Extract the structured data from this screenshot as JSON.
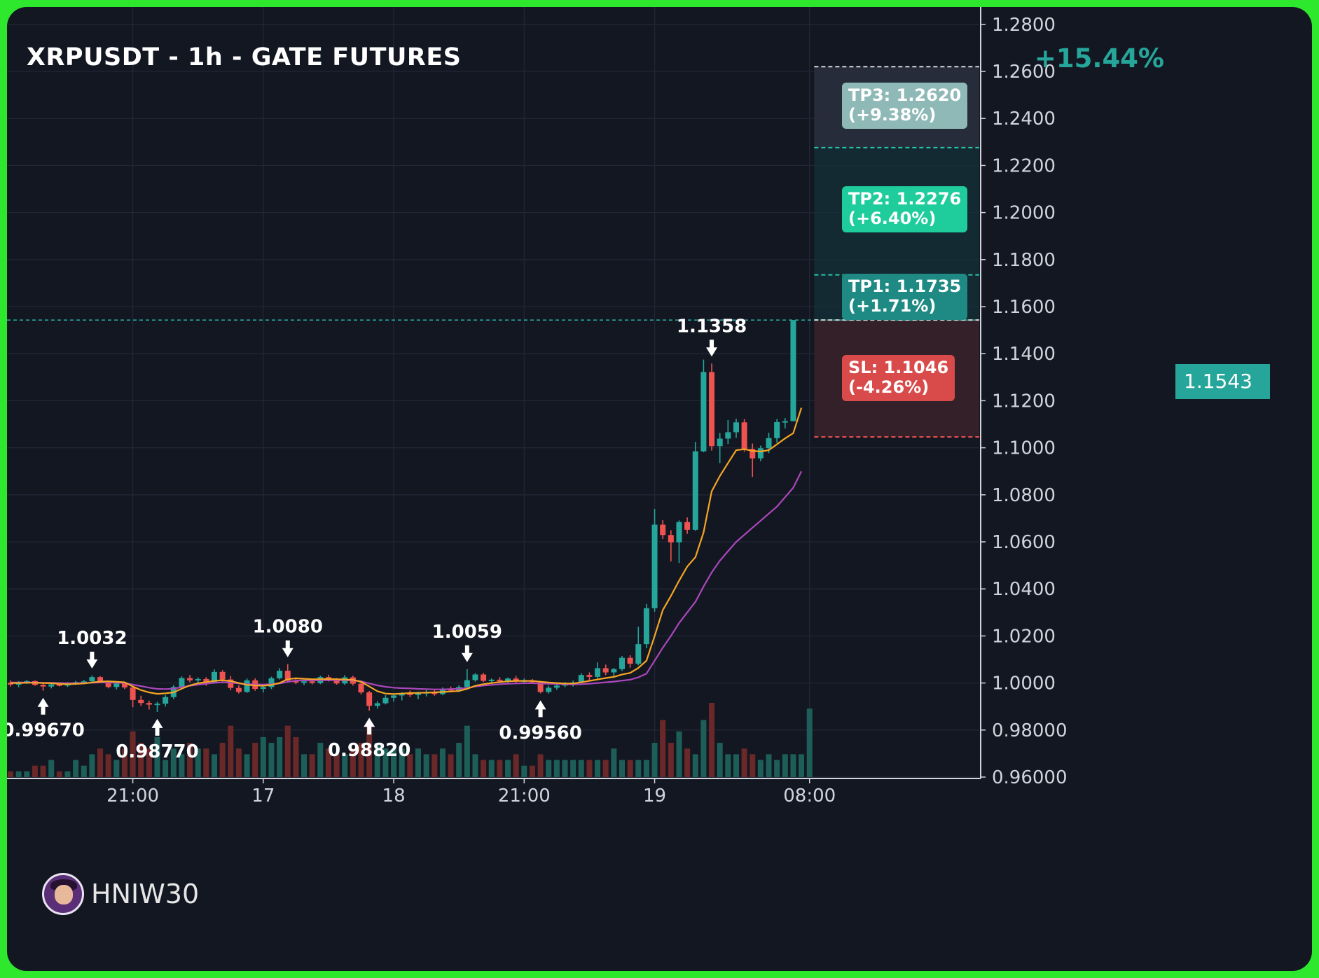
{
  "header": {
    "title": "XRPUSDT - 1h - GATE FUTURES",
    "target_change": "+15.44%"
  },
  "targets": {
    "tp3": "TP3: 1.2620\n(+9.38%)",
    "tp2": "TP2: 1.2276\n(+6.40%)",
    "tp1": "TP1: 1.1735\n(+1.71%)",
    "sl": "SL: 1.1046\n(-4.26%)",
    "current_price": "1.1543"
  },
  "author": {
    "name": "HNIW30"
  },
  "colors": {
    "background": "#131722",
    "frame": "#2ee82e",
    "up": "#26a69a",
    "down": "#ef5350",
    "ma_fast": "#f5a623",
    "ma_slow": "#ab47bc",
    "tp3_badge": "#8fb9b6",
    "tp2_badge": "#1fcc9c",
    "tp1_badge": "#1f8a83",
    "sl_badge": "#d94b4b"
  },
  "chart_data": {
    "type": "candlestick",
    "symbol": "XRPUSDT",
    "timeframe": "1h",
    "exchange": "GATE FUTURES",
    "ylim": [
      0.959,
      1.2855
    ],
    "y_ticks": [
      "1.2800",
      "1.2600",
      "1.2400",
      "1.2200",
      "1.2000",
      "1.1800",
      "1.1600",
      "1.1400",
      "1.1200",
      "1.1000",
      "1.0800",
      "1.0600",
      "1.0400",
      "1.0200",
      "1.0000",
      "0.98000",
      "0.96000"
    ],
    "x_ticks": [
      {
        "label": "21:00",
        "index": 15
      },
      {
        "label": "17",
        "index": 31
      },
      {
        "label": "18",
        "index": 47
      },
      {
        "label": "21:00",
        "index": 63
      },
      {
        "label": "19",
        "index": 79
      },
      {
        "label": "08:00",
        "index": 98
      }
    ],
    "bar_count": 119,
    "candles": [
      [
        1.0001,
        1.0012,
        0.9985,
        0.9993
      ],
      [
        0.9993,
        1.0008,
        0.9982,
        1.0004
      ],
      [
        1.0004,
        1.0013,
        0.9996,
        1.0008
      ],
      [
        1.0008,
        1.0011,
        0.9988,
        0.9992
      ],
      [
        0.9992,
        1.0,
        0.9967,
        0.9985
      ],
      [
        0.9985,
        0.9997,
        0.9977,
        0.9994
      ],
      [
        0.9994,
        1.0001,
        0.9985,
        0.9989
      ],
      [
        0.9989,
        1.0004,
        0.9983,
        0.9998
      ],
      [
        0.9998,
        1.0009,
        0.9992,
        1.0004
      ],
      [
        1.0004,
        1.0013,
        0.9998,
        1.0007
      ],
      [
        1.0007,
        1.0032,
        1.0001,
        1.0025
      ],
      [
        1.0025,
        1.0029,
        1.0003,
        1.0008
      ],
      [
        1.0008,
        1.001,
        0.9977,
        0.9983
      ],
      [
        0.9983,
        1.0004,
        0.9973,
        0.9998
      ],
      [
        0.9998,
        1.0004,
        0.9974,
        0.9981
      ],
      [
        0.9981,
        0.9987,
        0.9897,
        0.9928
      ],
      [
        0.9928,
        0.9946,
        0.9903,
        0.9915
      ],
      [
        0.9915,
        0.9925,
        0.9887,
        0.9908
      ],
      [
        0.9908,
        0.992,
        0.9877,
        0.9912
      ],
      [
        0.9912,
        0.9948,
        0.99,
        0.994
      ],
      [
        0.994,
        0.9991,
        0.9932,
        0.9983
      ],
      [
        0.9983,
        1.0028,
        0.9975,
        1.0021
      ],
      [
        1.0021,
        1.0034,
        1.0003,
        1.0011
      ],
      [
        1.0011,
        1.0024,
        0.9996,
        1.0017
      ],
      [
        1.0017,
        1.0025,
        0.9988,
        1.0002
      ],
      [
        1.0002,
        1.0058,
        0.9997,
        1.0047
      ],
      [
        1.0047,
        1.0055,
        1.0004,
        1.0015
      ],
      [
        1.0015,
        1.003,
        0.9969,
        0.9979
      ],
      [
        0.9979,
        0.999,
        0.9955,
        0.9962
      ],
      [
        0.9962,
        1.0019,
        0.9958,
        1.0011
      ],
      [
        1.0011,
        1.002,
        0.9967,
        0.9975
      ],
      [
        0.9975,
        0.9995,
        0.996,
        0.9983
      ],
      [
        0.9983,
        1.0027,
        0.9974,
        1.002
      ],
      [
        1.002,
        1.0063,
        1.0015,
        1.0052
      ],
      [
        1.0052,
        1.008,
        1.0003,
        1.001
      ],
      [
        1.001,
        1.0019,
        0.9995,
        1.0002
      ],
      [
        1.0002,
        1.0011,
        0.9991,
        1.0007
      ],
      [
        1.0007,
        1.0016,
        0.9994,
        1.0
      ],
      [
        1.0,
        1.0031,
        0.9995,
        1.0025
      ],
      [
        1.0025,
        1.0035,
        1.0006,
        1.0012
      ],
      [
        1.0012,
        1.0021,
        0.9993,
        0.9998
      ],
      [
        0.9998,
        1.0034,
        0.9992,
        1.0024
      ],
      [
        1.0024,
        1.0031,
        0.9989,
        0.9997
      ],
      [
        0.9997,
        1.001,
        0.9952,
        0.996
      ],
      [
        0.996,
        0.9966,
        0.9882,
        0.9903
      ],
      [
        0.9903,
        0.9923,
        0.9891,
        0.9914
      ],
      [
        0.9914,
        0.9948,
        0.9909,
        0.9937
      ],
      [
        0.9937,
        0.9954,
        0.9921,
        0.9947
      ],
      [
        0.9947,
        0.9961,
        0.9926,
        0.9955
      ],
      [
        0.9955,
        0.9968,
        0.994,
        0.9949
      ],
      [
        0.9949,
        0.9963,
        0.9931,
        0.9958
      ],
      [
        0.9958,
        0.997,
        0.9943,
        0.9961
      ],
      [
        0.9961,
        0.9975,
        0.9946,
        0.9953
      ],
      [
        0.9953,
        0.9981,
        0.9948,
        0.9974
      ],
      [
        0.9974,
        0.9985,
        0.996,
        0.9969
      ],
      [
        0.9969,
        0.999,
        0.9962,
        0.9983
      ],
      [
        0.9983,
        1.0059,
        0.9977,
        1.0012
      ],
      [
        1.0012,
        1.0042,
        1.0006,
        1.0036
      ],
      [
        1.0036,
        1.0043,
        1.0004,
        1.0009
      ],
      [
        1.0009,
        1.0019,
        0.9998,
        1.0014
      ],
      [
        1.0014,
        1.0025,
        1.0002,
        1.0007
      ],
      [
        1.0007,
        1.0023,
        1.0,
        1.0019
      ],
      [
        1.0019,
        1.003,
        1.0001,
        1.0006
      ],
      [
        1.0006,
        1.0019,
        0.9996,
        1.0011
      ],
      [
        1.0011,
        1.0017,
        0.9998,
        1.0003
      ],
      [
        1.0003,
        1.0009,
        0.9956,
        0.9962
      ],
      [
        0.9962,
        0.9989,
        0.9955,
        0.998
      ],
      [
        0.998,
        0.9996,
        0.9971,
        0.9989
      ],
      [
        0.9989,
        1.0004,
        0.9982,
        0.9997
      ],
      [
        0.9997,
        1.001,
        0.9985,
        1.0002
      ],
      [
        1.0002,
        1.0042,
        0.9997,
        1.0034
      ],
      [
        1.0034,
        1.0045,
        1.0012,
        1.0026
      ],
      [
        1.0026,
        1.0088,
        1.0018,
        1.0063
      ],
      [
        1.0063,
        1.0078,
        1.0033,
        1.0045
      ],
      [
        1.0045,
        1.0064,
        1.0028,
        1.0059
      ],
      [
        1.0059,
        1.0115,
        1.0051,
        1.0107
      ],
      [
        1.0107,
        1.0118,
        1.0065,
        1.0082
      ],
      [
        1.0082,
        1.0239,
        1.0075,
        1.0165
      ],
      [
        1.0165,
        1.0336,
        1.0148,
        1.0318
      ],
      [
        1.0318,
        1.074,
        1.0303,
        1.0673
      ],
      [
        1.0673,
        1.0692,
        1.0612,
        1.0629
      ],
      [
        1.0629,
        1.0649,
        1.0517,
        1.0598
      ],
      [
        1.0598,
        1.0691,
        1.051,
        1.0684
      ],
      [
        1.0684,
        1.0704,
        1.0634,
        1.0651
      ],
      [
        1.0651,
        1.1025,
        1.0647,
        1.0985
      ],
      [
        1.0985,
        1.1375,
        1.0981,
        1.1322
      ],
      [
        1.1322,
        1.1358,
        1.0988,
        1.1007
      ],
      [
        1.1007,
        1.1063,
        1.0935,
        1.1039
      ],
      [
        1.1039,
        1.1118,
        1.1016,
        1.1066
      ],
      [
        1.1066,
        1.1124,
        1.1042,
        1.1108
      ],
      [
        1.1108,
        1.1122,
        1.0983,
        1.0995
      ],
      [
        1.0995,
        1.1018,
        1.0876,
        1.0955
      ],
      [
        1.0955,
        1.1009,
        1.0943,
        1.0998
      ],
      [
        1.0998,
        1.1064,
        1.0977,
        1.1041
      ],
      [
        1.1041,
        1.1122,
        1.1021,
        1.1109
      ],
      [
        1.1109,
        1.1126,
        1.1082,
        1.1113
      ],
      [
        1.1113,
        1.1543,
        1.1113,
        1.1543
      ]
    ],
    "ma_fast": [
      1.0,
      1.0,
      1.0001,
      1.0001,
      1.0,
      0.9999,
      0.9996,
      0.9995,
      0.9996,
      0.9998,
      1.0002,
      1.0006,
      1.0007,
      1.0005,
      1.0003,
      0.9985,
      0.997,
      0.996,
      0.9954,
      0.9956,
      0.996,
      0.9976,
      0.999,
      0.9999,
      1.0004,
      1.0009,
      1.0012,
      1.0008,
      1.0,
      0.9992,
      0.999,
      0.9988,
      0.9992,
      1.0,
      1.0016,
      1.002,
      1.0018,
      1.0016,
      1.0016,
      1.0017,
      1.0016,
      1.0015,
      1.0013,
      1.0005,
      0.9985,
      0.9965,
      0.9955,
      0.9953,
      0.9955,
      0.9957,
      0.9958,
      0.9959,
      0.996,
      0.9962,
      0.9964,
      0.9966,
      0.9975,
      0.9988,
      0.9995,
      1.0,
      1.0004,
      1.0007,
      1.0009,
      1.0009,
      1.0009,
      1.0005,
      1.0002,
      1.0,
      0.9998,
      0.9998,
      1.0003,
      1.0009,
      1.0015,
      1.0021,
      1.0026,
      1.0036,
      1.0043,
      1.0064,
      1.0095,
      1.02,
      1.031,
      1.037,
      1.0435,
      1.0495,
      1.0535,
      1.064,
      1.0815,
      1.088,
      1.0935,
      1.099,
      1.0994,
      1.0987,
      1.0984,
      1.099,
      1.1015,
      1.104,
      1.1062,
      1.117
    ],
    "ma_slow": [
      1.0002,
      1.0002,
      1.0002,
      1.0002,
      1.0001,
      1.0001,
      1.0,
      0.9999,
      0.9999,
      1.0,
      1.0001,
      1.0002,
      1.0002,
      1.0001,
      1.0,
      0.9993,
      0.9987,
      0.998,
      0.9975,
      0.9974,
      0.9976,
      0.9982,
      0.9988,
      0.9993,
      0.9997,
      1.0001,
      1.0003,
      1.0002,
      0.9998,
      0.9995,
      0.9994,
      0.9993,
      0.9995,
      0.9998,
      1.0005,
      1.001,
      1.0011,
      1.0011,
      1.0012,
      1.0012,
      1.0012,
      1.0012,
      1.0011,
      1.0007,
      0.9998,
      0.999,
      0.9984,
      0.998,
      0.9978,
      0.9977,
      0.9975,
      0.9974,
      0.9973,
      0.9973,
      0.9974,
      0.9976,
      0.9979,
      0.9985,
      0.9989,
      0.9992,
      0.9995,
      0.9997,
      0.9998,
      0.9999,
      0.9999,
      0.9998,
      0.9997,
      0.9996,
      0.9995,
      0.9994,
      0.9995,
      0.9997,
      1.0,
      1.0003,
      1.0006,
      1.001,
      1.0014,
      1.0024,
      1.004,
      1.0095,
      1.015,
      1.02,
      1.0255,
      1.03,
      1.0345,
      1.041,
      1.047,
      1.052,
      1.056,
      1.06,
      1.063,
      1.066,
      1.069,
      1.072,
      1.075,
      1.079,
      1.083,
      1.09
    ],
    "volume": [
      1,
      1,
      1,
      2,
      2,
      3,
      1,
      1,
      3,
      2,
      4,
      5,
      4,
      3,
      5,
      8,
      6,
      5,
      7,
      3,
      5,
      4,
      6,
      5,
      5,
      4,
      6,
      9,
      5,
      4,
      6,
      7,
      6,
      7,
      9,
      7,
      4,
      4,
      6,
      5,
      4,
      4,
      5,
      6,
      9,
      6,
      5,
      5,
      5,
      4,
      5,
      4,
      4,
      5,
      4,
      6,
      9,
      4,
      3,
      3,
      3,
      3,
      4,
      2,
      2,
      4,
      3,
      3,
      3,
      3,
      3,
      3,
      3,
      3,
      5,
      3,
      3,
      3,
      3,
      6,
      10,
      6,
      8,
      5,
      4,
      10,
      13,
      6,
      4,
      4,
      5,
      4,
      3,
      4,
      3,
      4,
      4,
      4,
      12
    ],
    "annotations": [
      {
        "label": "0.99670",
        "index": 4,
        "price": 0.9967,
        "type": "low"
      },
      {
        "label": "1.0032",
        "index": 10,
        "price": 1.0032,
        "type": "high"
      },
      {
        "label": "0.98770",
        "index": 18,
        "price": 0.9877,
        "type": "low"
      },
      {
        "label": "1.0080",
        "index": 34,
        "price": 1.008,
        "type": "high"
      },
      {
        "label": "0.98820",
        "index": 44,
        "price": 0.9882,
        "type": "low"
      },
      {
        "label": "1.0059",
        "index": 56,
        "price": 1.0059,
        "type": "high"
      },
      {
        "label": "0.99560",
        "index": 65,
        "price": 0.9956,
        "type": "low"
      },
      {
        "label": "1.1358",
        "index": 86,
        "price": 1.1358,
        "type": "high"
      }
    ],
    "levels": {
      "entry": 1.1543,
      "tp1": 1.1735,
      "tp2": 1.2276,
      "tp3": 1.262,
      "sl": 1.1046
    }
  }
}
